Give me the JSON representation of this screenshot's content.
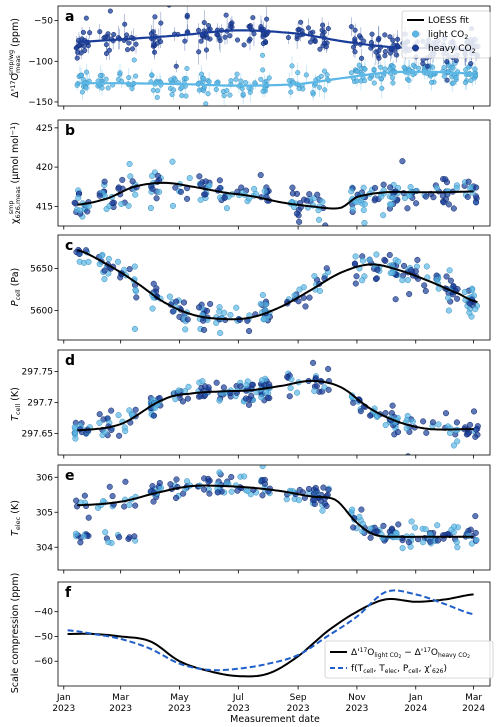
{
  "colors": {
    "light": "#5bb8e6",
    "heavy": "#1a3d99",
    "fit": "#000000",
    "model": "#1f5fc8"
  },
  "x_axis": {
    "label": "Measurement date",
    "ticks": [
      {
        "date": "2023-01-01",
        "line1": "Jan",
        "line2": "2023"
      },
      {
        "date": "2023-03-01",
        "line1": "Mar",
        "line2": "2023"
      },
      {
        "date": "2023-05-01",
        "line1": "May",
        "line2": "2023"
      },
      {
        "date": "2023-07-01",
        "line1": "Jul",
        "line2": "2023"
      },
      {
        "date": "2023-09-01",
        "line1": "Sep",
        "line2": "2023"
      },
      {
        "date": "2023-11-01",
        "line1": "Nov",
        "line2": "2023"
      },
      {
        "date": "2024-01-01",
        "line1": "Jan",
        "line2": "2024"
      },
      {
        "date": "2024-03-01",
        "line1": "Mar",
        "line2": "2024"
      }
    ],
    "xlim": [
      "2022-12-26",
      "2024-03-18"
    ]
  },
  "chart_data": [
    {
      "panel": "a",
      "type": "scatter",
      "ylabel": "Δ'17O meas (ppm)",
      "ylim": [
        -155,
        -32
      ],
      "yticks": [
        -150,
        -100,
        -50
      ],
      "legend": {
        "placement": "top-right",
        "entries": [
          "LOESS fit",
          "light CO2",
          "heavy CO2"
        ]
      },
      "series": [
        {
          "name": "LOESS fit light",
          "kind": "line",
          "color": "light",
          "x": [
            "2023-01-15",
            "2023-03-01",
            "2023-05-01",
            "2023-07-01",
            "2023-09-01",
            "2023-10-15",
            "2023-12-01",
            "2024-01-15",
            "2024-03-01"
          ],
          "y": [
            -127,
            -127,
            -128,
            -130,
            -128,
            -121,
            -114,
            -113,
            -115
          ]
        },
        {
          "name": "LOESS fit heavy",
          "kind": "line",
          "color": "heavy",
          "x": [
            "2023-01-15",
            "2023-03-01",
            "2023-05-01",
            "2023-07-01",
            "2023-09-01",
            "2023-10-15",
            "2023-12-01",
            "2024-01-15",
            "2024-03-01"
          ],
          "y": [
            -76,
            -73,
            -68,
            -62,
            -66,
            -75,
            -82,
            -84,
            -85
          ]
        },
        {
          "name": "light CO2",
          "kind": "points",
          "color": "light",
          "count": 900,
          "spread": 7
        },
        {
          "name": "heavy CO2",
          "kind": "points",
          "color": "heavy",
          "count": 900,
          "spread": 9
        }
      ]
    },
    {
      "panel": "b",
      "type": "scatter",
      "ylabel": "χ 626,meas (μmol mol−1)",
      "ylim": [
        412.5,
        426
      ],
      "yticks": [
        415,
        420,
        425
      ],
      "series": [
        {
          "name": "LOESS fit",
          "kind": "line",
          "color": "fit",
          "x": [
            "2023-01-15",
            "2023-02-15",
            "2023-03-15",
            "2023-04-15",
            "2023-05-15",
            "2023-06-15",
            "2023-07-15",
            "2023-08-15",
            "2023-09-15",
            "2023-10-15",
            "2023-11-01",
            "2023-12-01",
            "2024-01-01",
            "2024-02-01",
            "2024-03-01"
          ],
          "y": [
            415.2,
            416.0,
            417.5,
            418.0,
            417.5,
            416.8,
            416.3,
            415.5,
            415.0,
            414.8,
            416.2,
            416.8,
            416.8,
            416.8,
            416.9
          ]
        },
        {
          "name": "points",
          "kind": "points",
          "color": "mixed",
          "count": 700,
          "spread": 0.9
        }
      ]
    },
    {
      "panel": "c",
      "type": "scatter",
      "ylabel": "P cell (Pa)",
      "ylim": [
        5565,
        5690
      ],
      "yticks": [
        5600,
        5650
      ],
      "series": [
        {
          "name": "LOESS fit",
          "kind": "line",
          "color": "fit",
          "x": [
            "2023-01-15",
            "2023-02-15",
            "2023-03-15",
            "2023-04-15",
            "2023-05-15",
            "2023-06-15",
            "2023-07-15",
            "2023-08-15",
            "2023-09-15",
            "2023-10-15",
            "2023-11-15",
            "2023-12-15",
            "2024-01-15",
            "2024-02-15",
            "2024-03-05"
          ],
          "y": [
            5672,
            5655,
            5635,
            5610,
            5595,
            5590,
            5592,
            5605,
            5625,
            5645,
            5655,
            5648,
            5635,
            5620,
            5610
          ]
        },
        {
          "name": "points",
          "kind": "points",
          "color": "mixed",
          "count": 700,
          "spread": 8
        }
      ]
    },
    {
      "panel": "d",
      "type": "scatter",
      "ylabel": "T cell (K)",
      "ylim": [
        297.615,
        297.785
      ],
      "yticks": [
        297.65,
        297.7,
        297.75
      ],
      "series": [
        {
          "name": "LOESS fit",
          "kind": "line",
          "color": "fit",
          "x": [
            "2023-01-15",
            "2023-03-01",
            "2023-04-15",
            "2023-05-15",
            "2023-06-15",
            "2023-07-15",
            "2023-08-15",
            "2023-09-15",
            "2023-10-15",
            "2023-11-15",
            "2023-12-15",
            "2024-01-15",
            "2024-03-01"
          ],
          "y": [
            297.655,
            297.665,
            297.705,
            297.715,
            297.718,
            297.72,
            297.727,
            297.735,
            297.725,
            297.69,
            297.668,
            297.657,
            297.657
          ]
        },
        {
          "name": "points",
          "kind": "points",
          "color": "mixed",
          "count": 700,
          "spread": 0.01
        }
      ]
    },
    {
      "panel": "e",
      "type": "scatter",
      "ylabel": "T elec (K)",
      "ylim": [
        303.35,
        306.35
      ],
      "yticks": [
        304,
        305,
        306
      ],
      "series": [
        {
          "name": "LOESS fit",
          "kind": "line",
          "color": "fit",
          "x": [
            "2023-01-15",
            "2023-03-01",
            "2023-04-15",
            "2023-05-15",
            "2023-06-15",
            "2023-07-15",
            "2023-08-15",
            "2023-09-15",
            "2023-10-10",
            "2023-11-01",
            "2023-11-20",
            "2023-12-15",
            "2024-01-15",
            "2024-03-01"
          ],
          "y": [
            305.2,
            305.3,
            305.6,
            305.75,
            305.75,
            305.7,
            305.6,
            305.45,
            305.35,
            304.7,
            304.35,
            304.3,
            304.3,
            304.3
          ]
        },
        {
          "name": "points",
          "kind": "points",
          "color": "mixed",
          "count": 700,
          "spread": 0.15
        }
      ]
    },
    {
      "panel": "f",
      "type": "line",
      "ylabel": "Scale compression (ppm)",
      "ylim": [
        -70,
        -28
      ],
      "yticks": [
        -60,
        -50,
        -40
      ],
      "legend": {
        "placement": "bottom-right",
        "entries": [
          "Δ'17O light CO2 − Δ'17O heavy CO2",
          "f(T cell, T elec, P cell, χ 626)"
        ]
      },
      "series": [
        {
          "name": "Δ'17O light CO2 − Δ'17O heavy CO2",
          "kind": "line",
          "color": "fit",
          "x": [
            "2023-01-05",
            "2023-02-01",
            "2023-03-01",
            "2023-04-01",
            "2023-05-01",
            "2023-06-01",
            "2023-07-01",
            "2023-08-01",
            "2023-09-01",
            "2023-10-01",
            "2023-11-01",
            "2023-12-01",
            "2024-01-01",
            "2024-02-01",
            "2024-03-01"
          ],
          "y": [
            -49,
            -49,
            -50,
            -52,
            -60,
            -64,
            -66,
            -65,
            -58,
            -48,
            -40,
            -35,
            -36,
            -35,
            -33
          ]
        },
        {
          "name": "f(T cell, T elec, P cell, χ 626)",
          "kind": "dashed",
          "color": "model",
          "x": [
            "2023-01-05",
            "2023-02-01",
            "2023-03-01",
            "2023-04-01",
            "2023-05-01",
            "2023-06-01",
            "2023-07-01",
            "2023-08-01",
            "2023-09-01",
            "2023-10-01",
            "2023-11-01",
            "2023-12-01",
            "2024-01-01",
            "2024-02-01",
            "2024-03-01"
          ],
          "y": [
            -47.5,
            -49,
            -51,
            -55,
            -61,
            -63.5,
            -63,
            -61,
            -57.5,
            -50,
            -42,
            -32,
            -33,
            -37,
            -41
          ]
        }
      ]
    }
  ],
  "legend_a": {
    "fit": "LOESS fit",
    "light": "light CO",
    "light_sub": "2",
    "heavy": "heavy CO",
    "heavy_sub": "2"
  },
  "legend_f": {
    "line1_a": "Δ'",
    "line1_sup": "17",
    "line1_b": "O",
    "line1_sub1": "light CO",
    "line1_sub1b": "2",
    "line1_c": " − Δ'",
    "line1_sup2": "17",
    "line1_d": "O",
    "line1_sub2": "heavy CO",
    "line1_sub2b": "2",
    "line2_a": "f(T",
    "line2_s1": "cell",
    "line2_b": ", T",
    "line2_s2": "elec",
    "line2_c": ", P",
    "line2_s3": "cell",
    "line2_d": ", χ'",
    "line2_s4": "626",
    "line2_e": ")"
  },
  "ylabels": {
    "a_main": "Δ'",
    "a_sup": "17",
    "a_o": "O",
    "a_sub": "meas",
    "a_supr": "smp/wg",
    "a_unit": " (ppm)",
    "b_main": "χ",
    "b_sub": "626,meas",
    "b_sup": "smp",
    "b_unit": " (μmol mol",
    "b_unit_sup": "−1",
    "b_unit_end": ")",
    "c_main": "P",
    "c_sub": "cell",
    "c_unit": " (Pa)",
    "d_main": "T",
    "d_sub": "cell",
    "d_unit": " (K)",
    "e_main": "T",
    "e_sub": "elec",
    "e_unit": " (K)",
    "f_main": "Scale compression (ppm)"
  },
  "panel_letters": [
    "a",
    "b",
    "c",
    "d",
    "e",
    "f"
  ]
}
